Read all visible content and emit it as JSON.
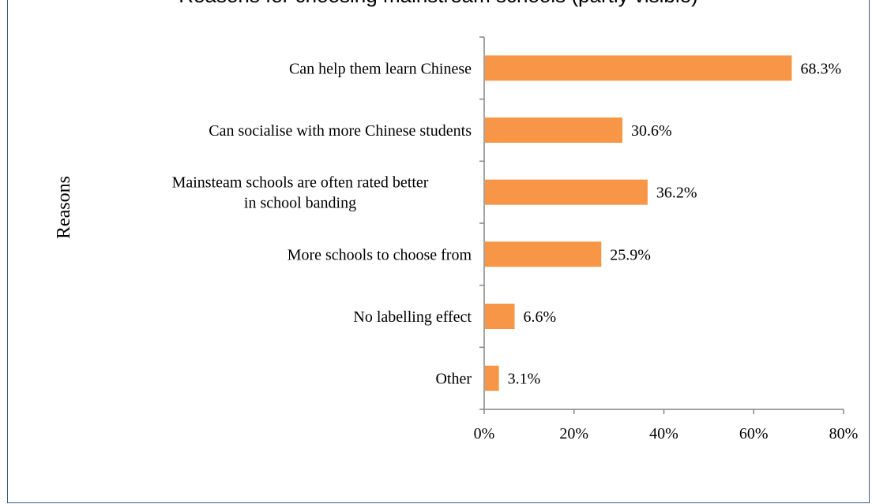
{
  "chart_data": {
    "type": "bar",
    "orientation": "horizontal",
    "title": "Reasons for choosing mainstream schools (partly visible)",
    "ylabel": "Reasons",
    "xlabel": "",
    "categories": [
      [
        "Can help them learn Chinese"
      ],
      [
        "Can socialise with more Chinese students"
      ],
      [
        "Mainsteam schools are often rated better",
        "in school banding"
      ],
      [
        "More schools to choose from"
      ],
      [
        "No labelling effect"
      ],
      [
        "Other"
      ]
    ],
    "values": [
      68.3,
      30.6,
      36.2,
      25.9,
      6.6,
      3.1
    ],
    "value_labels": [
      "68.3%",
      "30.6%",
      "36.2%",
      "25.9%",
      "6.6%",
      "3.1%"
    ],
    "xticks": [
      "0%",
      "20%",
      "40%",
      "60%",
      "80%"
    ],
    "xlim": [
      0,
      80
    ],
    "grid": false,
    "legend": "none",
    "bar_color": "#f79646",
    "axis_color": "#868686"
  }
}
